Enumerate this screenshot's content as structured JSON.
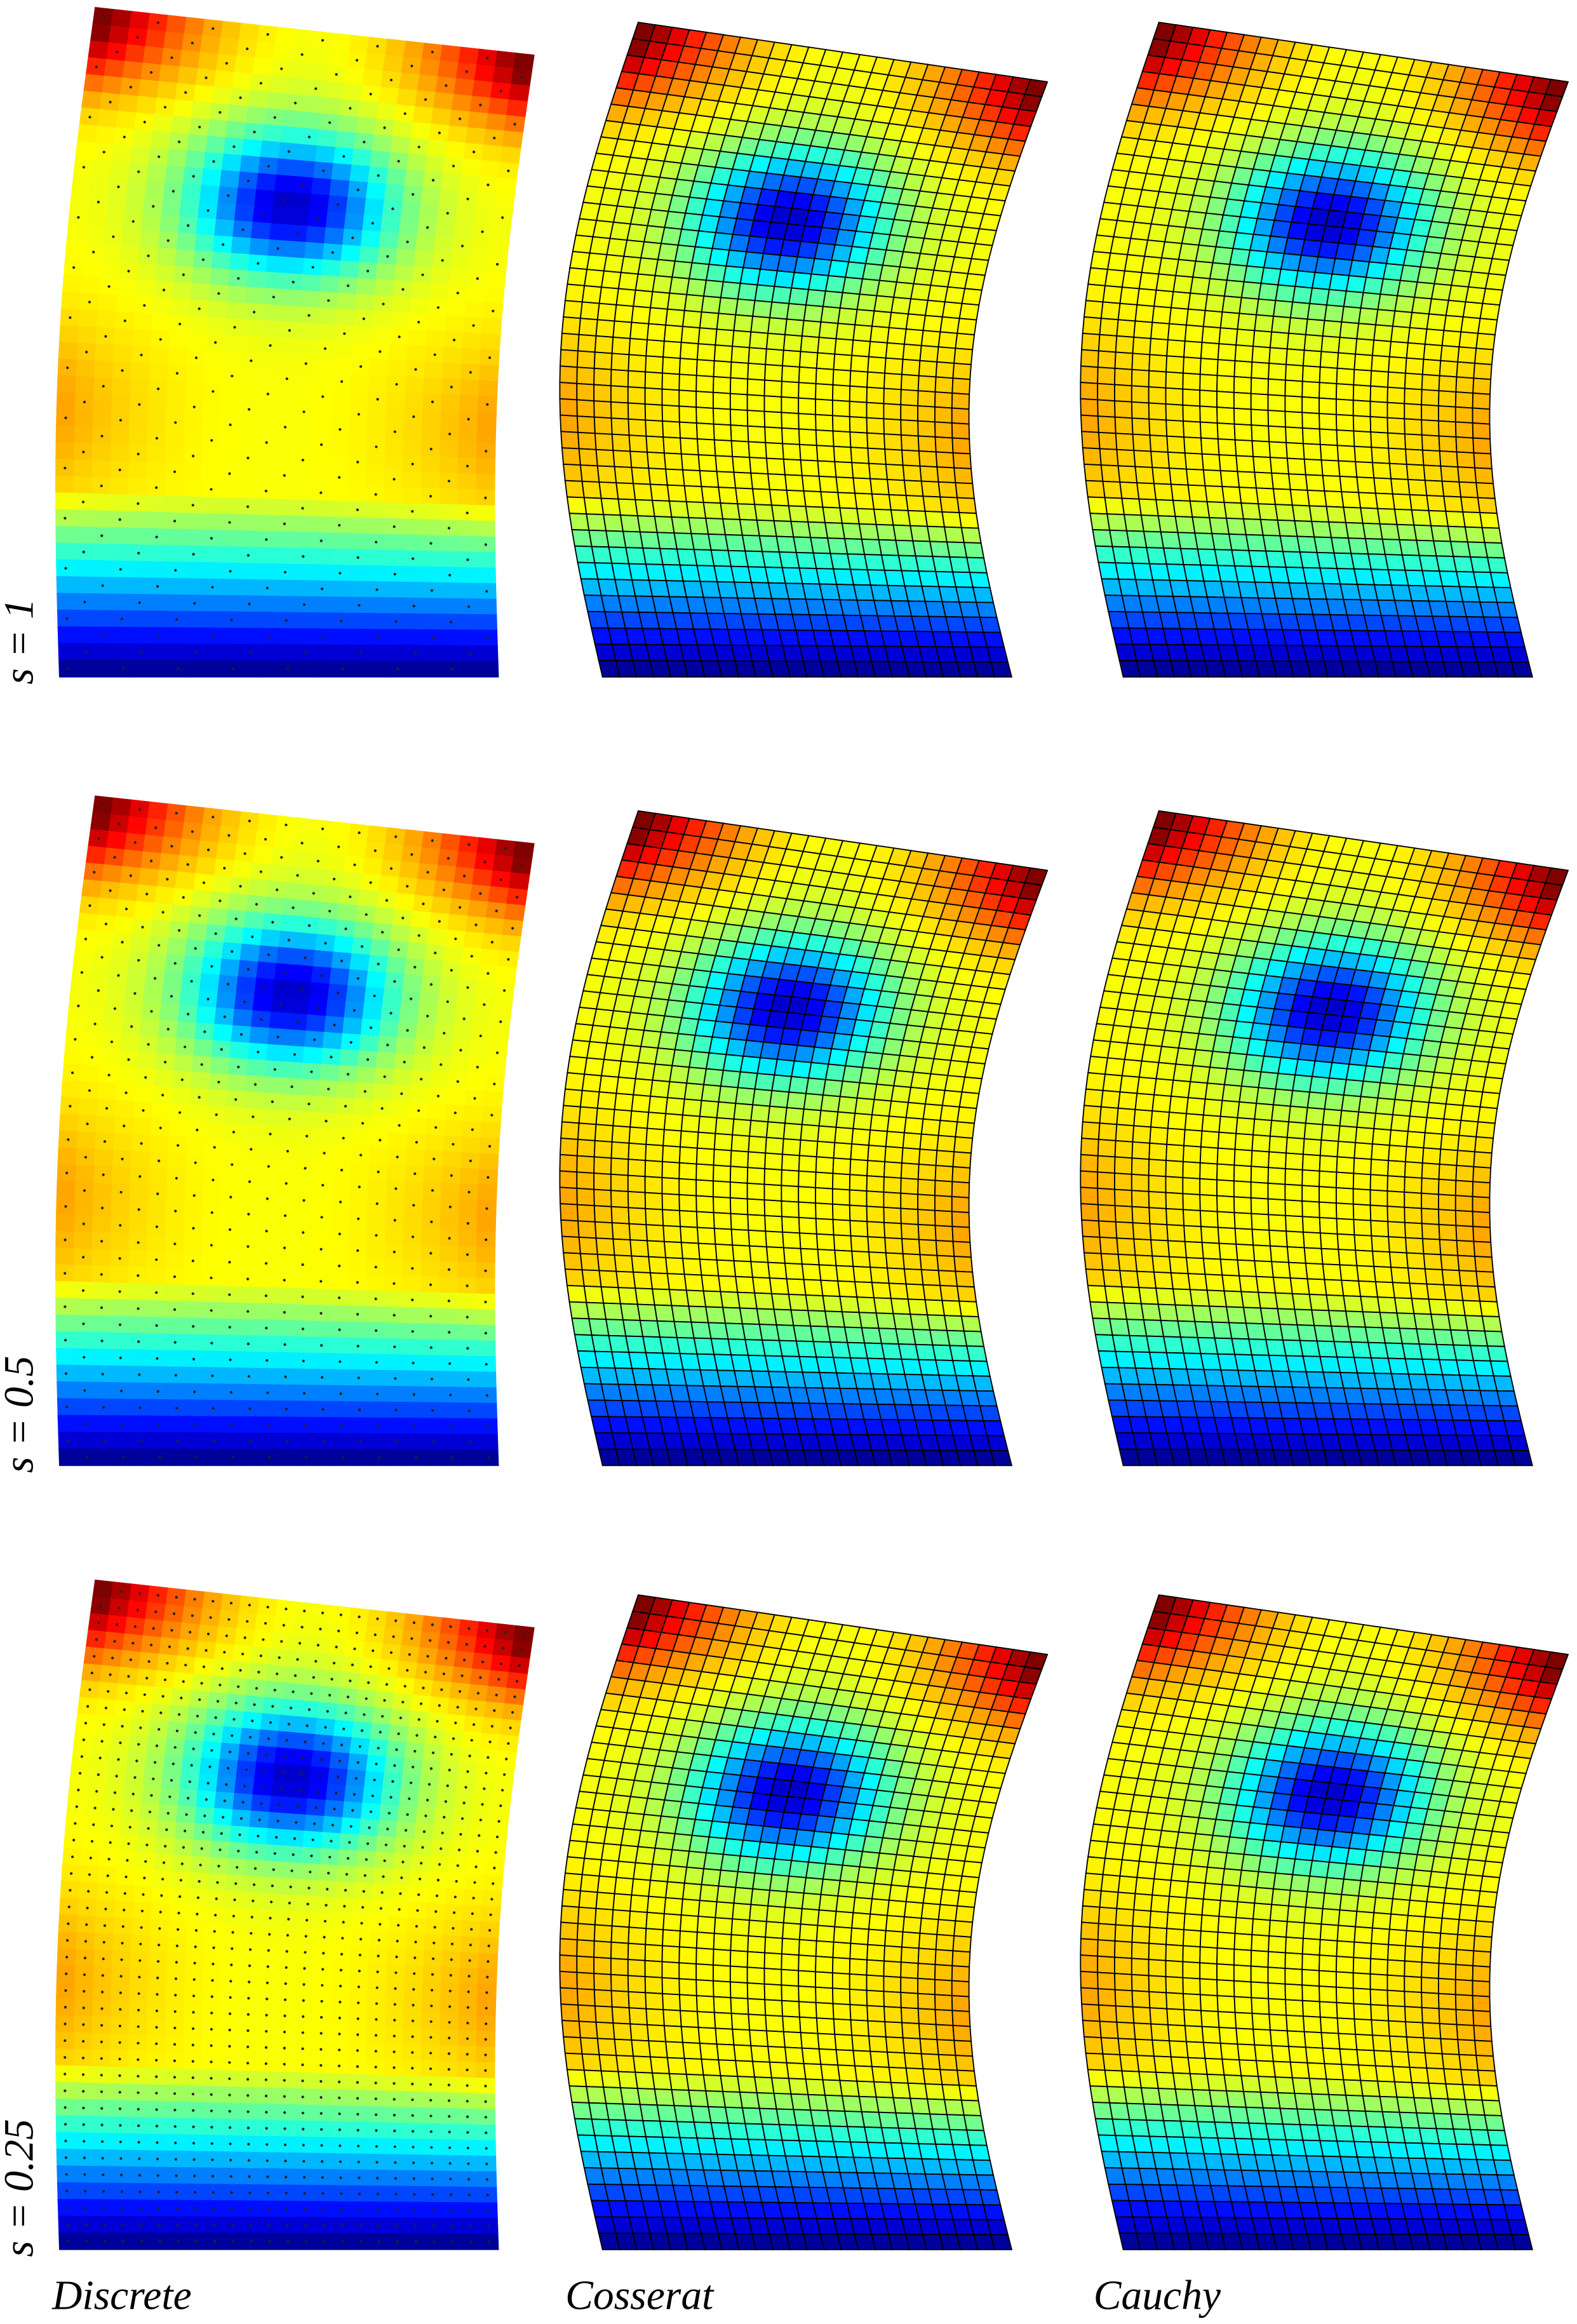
{
  "row_labels": [
    "s = 1",
    "s = 0.5",
    "s = 0.25"
  ],
  "column_labels": [
    "Discrete",
    "Cosserat",
    "Cauchy"
  ]
}
